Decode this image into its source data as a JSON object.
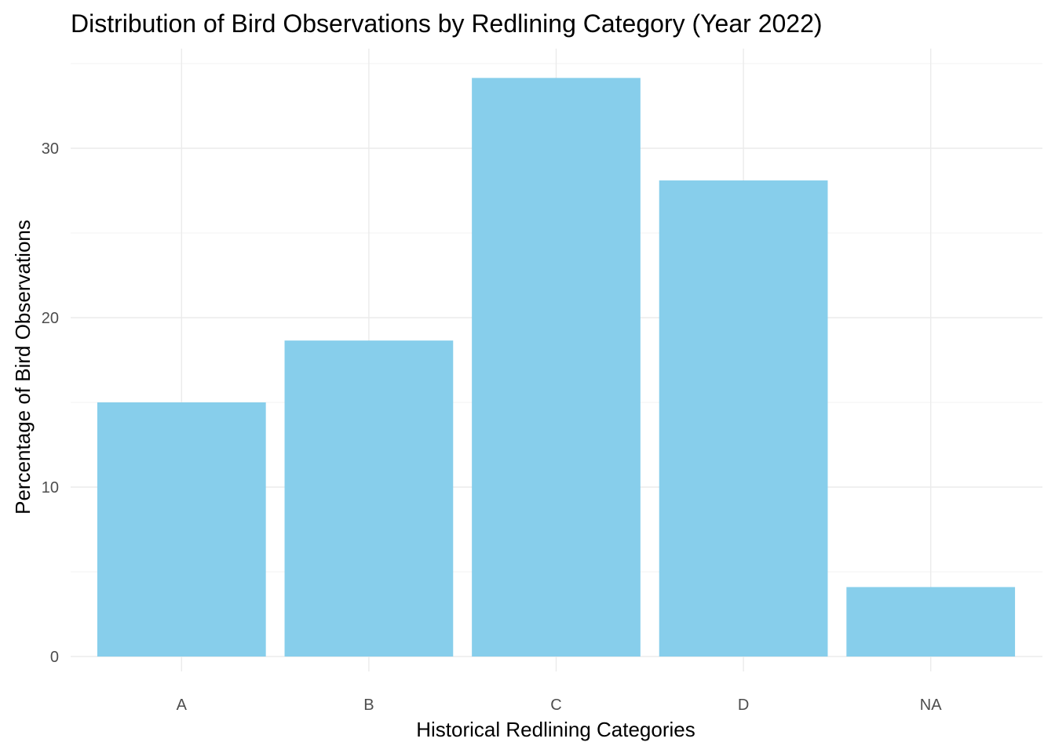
{
  "chart_data": {
    "type": "bar",
    "title": "Distribution of Bird Observations by Redlining Category (Year 2022)",
    "xlabel": "Historical Redlining Categories",
    "ylabel": "Percentage of Bird Observations",
    "categories": [
      "A",
      "B",
      "C",
      "D",
      "NA"
    ],
    "values": [
      15.0,
      18.65,
      34.15,
      28.1,
      4.1
    ],
    "ylim": [
      0,
      35.9
    ],
    "y_ticks": [
      0,
      10,
      20,
      30
    ],
    "y_tick_labels": [
      "0",
      "10",
      "20",
      "30"
    ],
    "grid": true,
    "legend": "none",
    "bar_color": "#87CEEB",
    "grid_color": "#ebebeb"
  }
}
